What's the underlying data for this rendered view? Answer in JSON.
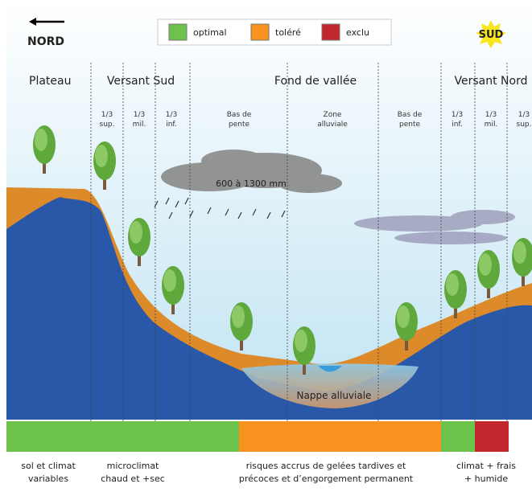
{
  "direction": {
    "left": "NORD",
    "right": "SUD"
  },
  "legend": [
    "optimal",
    "toléré",
    "exclu"
  ],
  "zones": [
    "Plateau",
    "Versant Sud",
    "Fond de vallée",
    "Versant Nord"
  ],
  "subzones": [
    [
      "1/3",
      "sup."
    ],
    [
      "1/3",
      "mil."
    ],
    [
      "1/3",
      "inf."
    ],
    [
      "Bas de",
      "pente"
    ],
    [
      "Zone",
      "alluviale"
    ],
    [
      "Bas de",
      "pente"
    ],
    [
      "1/3",
      "inf."
    ],
    [
      "1/3",
      "mil."
    ],
    [
      "1/3",
      "sup."
    ]
  ],
  "rainfall": "600 à 1300 mm",
  "aquifer": "Nappe alluviale",
  "notes": [
    [
      "sol et climat",
      "variables"
    ],
    [
      "microclimat",
      "chaud et +sec"
    ],
    [
      "risques accrus de gelées tardives et",
      "précoces et d’engorgement permanent"
    ],
    [
      "climat + frais",
      "+ humide"
    ]
  ]
}
